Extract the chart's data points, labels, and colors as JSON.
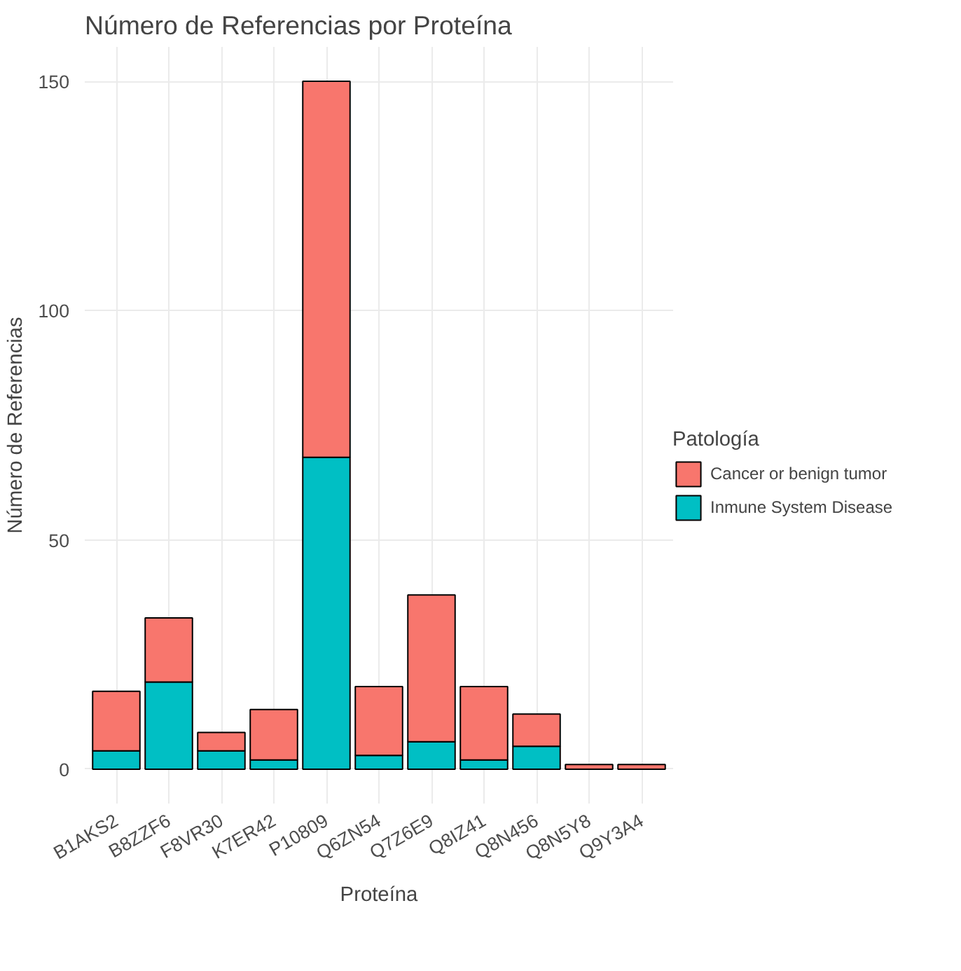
{
  "chart_data": {
    "type": "bar",
    "title": "Número de Referencias por Proteína",
    "xlabel": "Proteína",
    "ylabel": "Número de Referencias",
    "legend_title": "Patología",
    "categories": [
      "B1AKS2",
      "B8ZZF6",
      "F8VR30",
      "K7ER42",
      "P10809",
      "Q6ZN54",
      "Q7Z6E9",
      "Q8IZ41",
      "Q8N456",
      "Q8N5Y8",
      "Q9Y3A4"
    ],
    "stacked": true,
    "series": [
      {
        "name": "Inmune System Disease",
        "color": "#00bfc4",
        "values": [
          4,
          19,
          4,
          2,
          68,
          3,
          6,
          2,
          5,
          0,
          0
        ]
      },
      {
        "name": "Cancer or benign tumor",
        "color": "#f8766d",
        "values": [
          13,
          14,
          4,
          11,
          82,
          15,
          32,
          16,
          7,
          1,
          1
        ]
      }
    ],
    "ylim": [
      -7.5,
      157.5
    ],
    "yticks": [
      0,
      50,
      100,
      150
    ],
    "grid": true,
    "legend": "right"
  }
}
